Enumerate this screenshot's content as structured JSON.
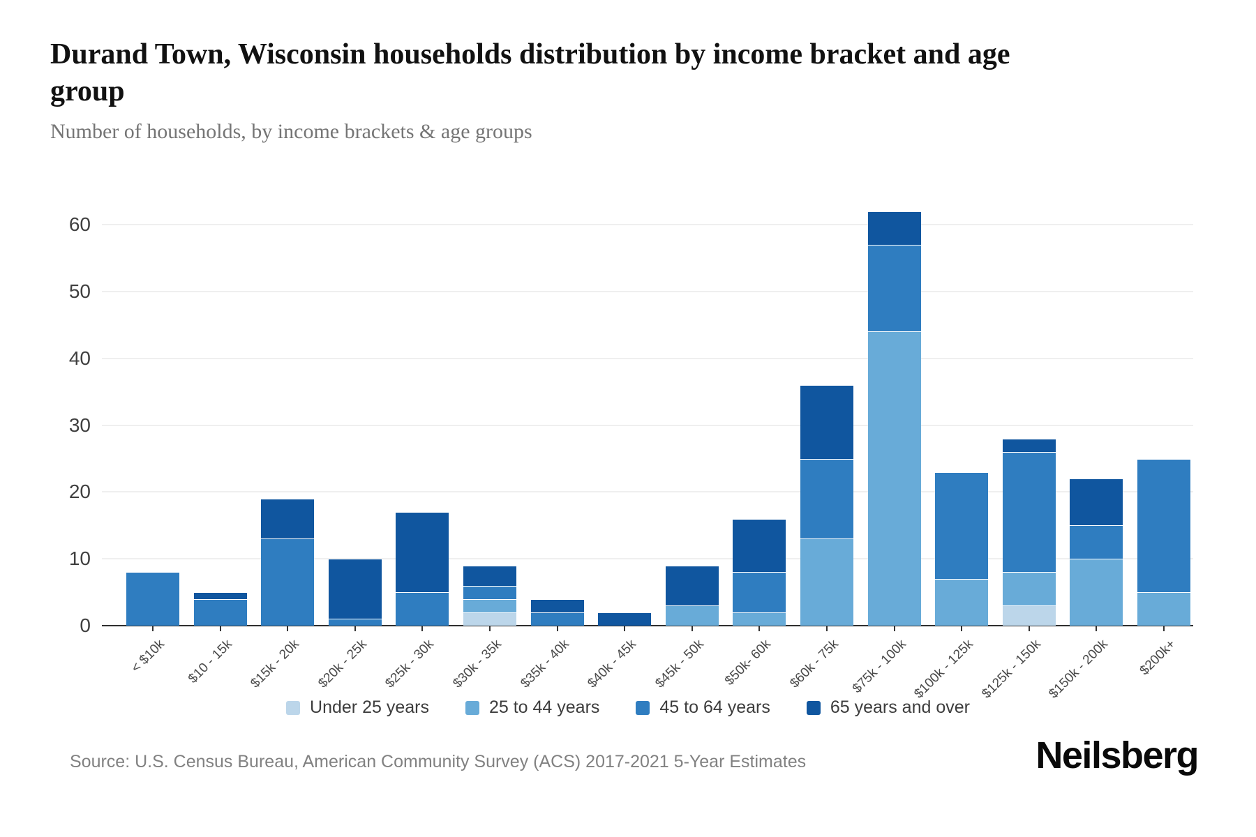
{
  "header": {
    "title": "Durand Town, Wisconsin households distribution by income bracket and age group",
    "subtitle": "Number of households, by income brackets & age groups"
  },
  "chart_data": {
    "type": "bar",
    "stacked": true,
    "title": "Durand Town, Wisconsin households distribution by income bracket and age group",
    "subtitle": "Number of households, by income brackets & age groups",
    "categories": [
      "< $10k",
      "$10 - 15k",
      "$15k - 20k",
      "$20k - 25k",
      "$25k - 30k",
      "$30k - 35k",
      "$35k - 40k",
      "$40k - 45k",
      "$45k - 50k",
      "$50k- 60k",
      "$60k - 75k",
      "$75k - 100k",
      "$100k - 125k",
      "$125k - 150k",
      "$150k - 200k",
      "$200k+"
    ],
    "series": [
      {
        "name": "Under 25 years",
        "color": "#bcd6ea",
        "values": [
          0,
          0,
          0,
          0,
          0,
          2,
          0,
          0,
          0,
          0,
          0,
          0,
          0,
          3,
          0,
          0
        ]
      },
      {
        "name": "25 to 44 years",
        "color": "#68abd8",
        "values": [
          0,
          0,
          0,
          0,
          0,
          2,
          0,
          0,
          3,
          2,
          13,
          44,
          7,
          5,
          10,
          5
        ]
      },
      {
        "name": "45 to 64 years",
        "color": "#2f7dc0",
        "values": [
          8,
          4,
          13,
          1,
          5,
          2,
          2,
          0,
          0,
          6,
          12,
          13,
          16,
          18,
          5,
          20
        ]
      },
      {
        "name": "65 years and over",
        "color": "#10569f",
        "values": [
          0,
          1,
          6,
          9,
          12,
          3,
          2,
          2,
          6,
          8,
          11,
          5,
          0,
          2,
          7,
          0
        ]
      }
    ],
    "totals": [
      8,
      5,
      19,
      10,
      17,
      9,
      4,
      2,
      9,
      16,
      36,
      62,
      23,
      28,
      22,
      25
    ],
    "xlabel": "",
    "ylabel": "",
    "ylim": [
      0,
      62
    ],
    "yticks": [
      0,
      10,
      20,
      30,
      40,
      50,
      60
    ],
    "grid": "horizontal",
    "legend_position": "bottom"
  },
  "footer": {
    "source": "Source: U.S. Census Bureau, American Community Survey (ACS) 2017-2021 5-Year Estimates",
    "brand": "Neilsberg"
  }
}
